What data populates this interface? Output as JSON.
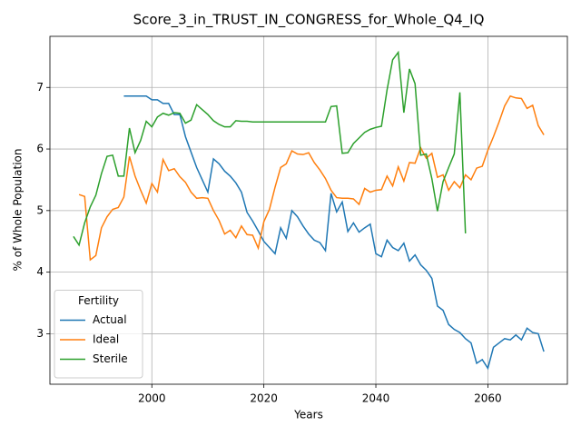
{
  "chart_data": {
    "type": "line",
    "title": "Score_3_in_TRUST_IN_CONGRESS_for_Whole_Q4_IQ",
    "x_label": "Years",
    "y_label": "% of Whole Population",
    "legend_title": "Fertility",
    "legend_position": "lower left",
    "grid": true,
    "x": [
      1986,
      1987,
      1988,
      1989,
      1990,
      1991,
      1992,
      1993,
      1994,
      1995,
      1996,
      1997,
      1998,
      1999,
      2000,
      2001,
      2002,
      2003,
      2004,
      2005,
      2006,
      2007,
      2008,
      2009,
      2010,
      2011,
      2012,
      2013,
      2014,
      2015,
      2016,
      2017,
      2018,
      2019,
      2020,
      2021,
      2022,
      2023,
      2024,
      2025,
      2026,
      2027,
      2028,
      2029,
      2030,
      2031,
      2032,
      2033,
      2034,
      2035,
      2036,
      2037,
      2038,
      2039,
      2040,
      2041,
      2042,
      2043,
      2044,
      2045,
      2046,
      2047,
      2048,
      2049,
      2050,
      2051,
      2052,
      2053,
      2054,
      2055,
      2056,
      2057,
      2058,
      2059,
      2060,
      2061,
      2062,
      2063,
      2064,
      2065,
      2066,
      2067,
      2068,
      2069,
      2070
    ],
    "xlim": [
      1981.8,
      2074.2
    ],
    "xticks": [
      2000,
      2020,
      2040,
      2060
    ],
    "ylim": [
      2.18,
      7.83
    ],
    "yticks": [
      3,
      4,
      5,
      6,
      7
    ],
    "series": [
      {
        "name": "Actual",
        "color": "#1f77b4",
        "values": [
          null,
          null,
          null,
          null,
          null,
          null,
          null,
          null,
          null,
          6.86,
          6.86,
          6.86,
          6.86,
          6.86,
          6.8,
          6.8,
          6.74,
          6.74,
          6.56,
          6.56,
          6.2,
          5.95,
          5.7,
          5.5,
          5.3,
          5.84,
          5.76,
          5.64,
          5.56,
          5.45,
          5.3,
          4.97,
          4.83,
          4.67,
          4.5,
          4.4,
          4.3,
          4.72,
          4.55,
          5.0,
          4.9,
          4.75,
          4.62,
          4.52,
          4.48,
          4.35,
          5.28,
          4.98,
          5.14,
          4.66,
          4.8,
          4.65,
          4.72,
          4.78,
          4.3,
          4.25,
          4.52,
          4.4,
          4.35,
          4.47,
          4.18,
          4.28,
          4.12,
          4.03,
          3.9,
          3.45,
          3.38,
          3.15,
          3.07,
          3.02,
          2.92,
          2.85,
          2.52,
          2.58,
          2.44,
          2.78,
          2.85,
          2.92,
          2.9,
          2.98,
          2.9,
          3.09,
          3.02,
          3.0,
          2.71
        ]
      },
      {
        "name": "Ideal",
        "color": "#ff7f0e",
        "values": [
          null,
          5.26,
          5.23,
          4.2,
          4.27,
          4.72,
          4.9,
          5.02,
          5.05,
          5.22,
          5.88,
          5.56,
          5.33,
          5.12,
          5.44,
          5.3,
          5.83,
          5.65,
          5.68,
          5.55,
          5.46,
          5.3,
          5.2,
          5.21,
          5.2,
          5.0,
          4.84,
          4.62,
          4.68,
          4.56,
          4.75,
          4.61,
          4.6,
          4.39,
          4.82,
          5.02,
          5.38,
          5.7,
          5.76,
          5.97,
          5.92,
          5.91,
          5.94,
          5.78,
          5.66,
          5.52,
          5.33,
          5.21,
          5.2,
          5.2,
          5.19,
          5.1,
          5.36,
          5.3,
          5.33,
          5.34,
          5.56,
          5.4,
          5.71,
          5.48,
          5.78,
          5.77,
          6.02,
          5.85,
          5.93,
          5.54,
          5.58,
          5.33,
          5.47,
          5.37,
          5.58,
          5.5,
          5.69,
          5.72,
          5.98,
          6.2,
          6.44,
          6.7,
          6.86,
          6.83,
          6.82,
          6.66,
          6.71,
          6.38,
          6.23
        ]
      },
      {
        "name": "Sterile",
        "color": "#2ca02c",
        "values": [
          4.58,
          4.44,
          4.8,
          5.06,
          5.25,
          5.6,
          5.88,
          5.9,
          5.56,
          5.56,
          6.34,
          5.94,
          6.14,
          6.45,
          6.36,
          6.52,
          6.58,
          6.55,
          6.59,
          6.58,
          6.42,
          6.47,
          6.72,
          6.64,
          6.56,
          6.46,
          6.4,
          6.36,
          6.36,
          6.46,
          6.45,
          6.45,
          6.44,
          6.44,
          6.44,
          6.44,
          6.44,
          6.44,
          6.44,
          6.44,
          6.44,
          6.44,
          6.44,
          6.44,
          6.44,
          6.44,
          6.69,
          6.7,
          5.93,
          5.94,
          6.09,
          6.18,
          6.27,
          6.32,
          6.35,
          6.37,
          6.96,
          7.45,
          7.57,
          6.59,
          7.3,
          7.06,
          5.9,
          5.92,
          5.52,
          4.99,
          5.47,
          5.7,
          5.92,
          6.92,
          4.63,
          null,
          null,
          null,
          null,
          null,
          null,
          null,
          null,
          null,
          null,
          null,
          null,
          null,
          null
        ]
      }
    ]
  }
}
